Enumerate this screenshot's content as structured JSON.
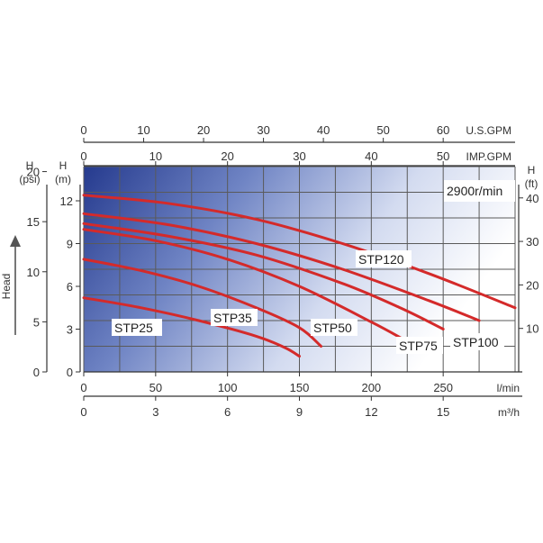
{
  "chart_data": {
    "type": "line",
    "speed_label": "2900r/min",
    "grid": true,
    "axes": {
      "us_gpm": {
        "label": "U.S.GPM",
        "ticks": [
          0,
          10,
          20,
          30,
          40,
          50,
          60
        ],
        "max": 72
      },
      "imp_gpm": {
        "label": "IMP.GPM",
        "ticks": [
          0,
          10,
          20,
          30,
          40,
          50
        ],
        "max": 60
      },
      "lmin": {
        "label": "l/min",
        "ticks": [
          0,
          50,
          100,
          150,
          200,
          250
        ],
        "max": 300
      },
      "m3h": {
        "label": "m³/h",
        "ticks": [
          0,
          3,
          6,
          9,
          12,
          15
        ],
        "max": 18
      },
      "head_m": {
        "label": "H",
        "unit": "(m)",
        "ticks": [
          0,
          3,
          6,
          9,
          12
        ],
        "max": 14.4
      },
      "head_psi": {
        "label": "H",
        "unit": "(psi)",
        "ticks": [
          0,
          5,
          10,
          15,
          20
        ],
        "max": 20.5
      },
      "head_ft": {
        "label": "H",
        "unit": "(ft)",
        "ticks": [
          10,
          20,
          30,
          40
        ],
        "max": 47.2
      },
      "side_label": "Head"
    },
    "x_unit": "l/min",
    "y_unit": "m",
    "series": [
      {
        "name": "STP25",
        "points": [
          [
            0,
            5.2
          ],
          [
            40,
            4.5
          ],
          [
            80,
            3.6
          ],
          [
            120,
            2.5
          ],
          [
            140,
            1.7
          ],
          [
            150,
            1.1
          ]
        ]
      },
      {
        "name": "STP35",
        "points": [
          [
            0,
            7.9
          ],
          [
            40,
            7.1
          ],
          [
            80,
            6.0
          ],
          [
            120,
            4.5
          ],
          [
            150,
            3.1
          ],
          [
            165,
            1.8
          ]
        ]
      },
      {
        "name": "STP50",
        "points": [
          [
            0,
            10.0
          ],
          [
            50,
            9.2
          ],
          [
            100,
            7.9
          ],
          [
            150,
            6.0
          ],
          [
            200,
            3.5
          ],
          [
            222,
            2.3
          ]
        ]
      },
      {
        "name": "STP75",
        "points": [
          [
            0,
            10.4
          ],
          [
            60,
            9.5
          ],
          [
            120,
            8.2
          ],
          [
            180,
            6.2
          ],
          [
            220,
            4.5
          ],
          [
            250,
            3.0
          ]
        ]
      },
      {
        "name": "STP100",
        "points": [
          [
            0,
            11.1
          ],
          [
            60,
            10.3
          ],
          [
            120,
            9.0
          ],
          [
            180,
            7.2
          ],
          [
            240,
            5.0
          ],
          [
            275,
            3.6
          ]
        ]
      },
      {
        "name": "STP120",
        "points": [
          [
            0,
            12.4
          ],
          [
            60,
            11.8
          ],
          [
            120,
            10.7
          ],
          [
            180,
            9.0
          ],
          [
            240,
            6.9
          ],
          [
            300,
            4.5
          ]
        ]
      }
    ]
  }
}
